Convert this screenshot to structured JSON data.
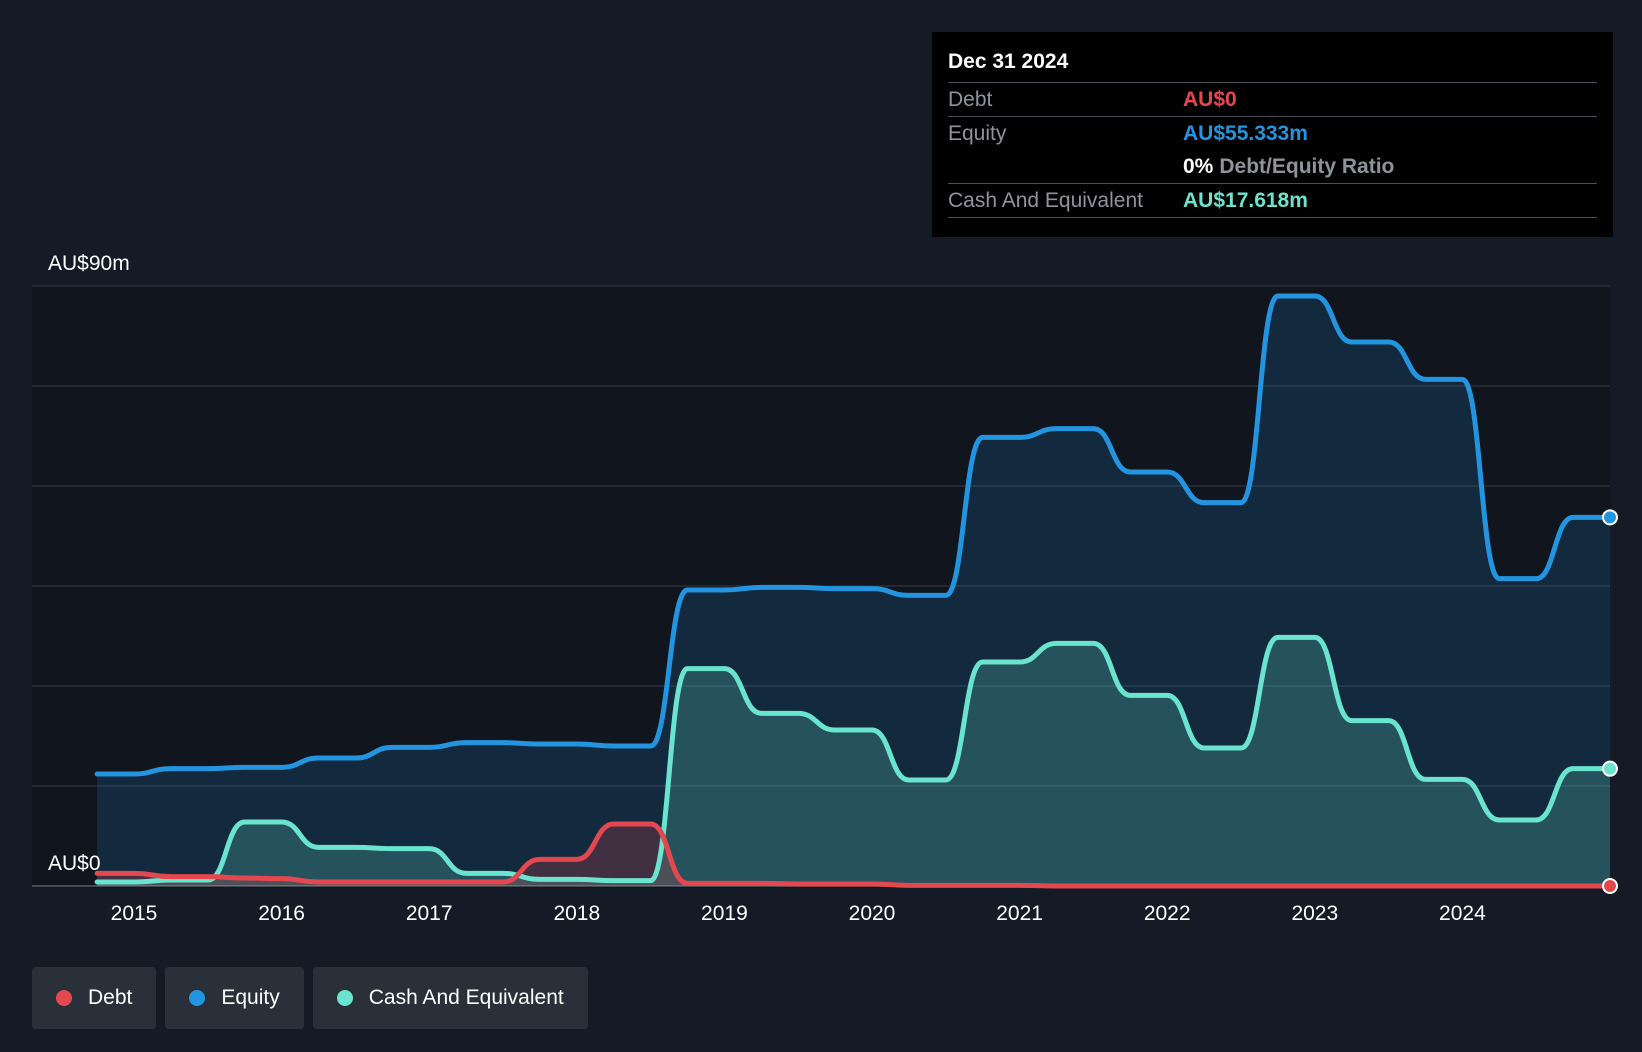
{
  "tooltip": {
    "date": "Dec 31 2024",
    "debt_label": "Debt",
    "debt_value": "AU$0",
    "equity_label": "Equity",
    "equity_value": "AU$55.333m",
    "ratio_value": "0%",
    "ratio_label": "Debt/Equity Ratio",
    "cash_label": "Cash And Equivalent",
    "cash_value": "AU$17.618m"
  },
  "legend": [
    {
      "label": "Debt",
      "color": "#e5474f"
    },
    {
      "label": "Equity",
      "color": "#2394df"
    },
    {
      "label": "Cash And Equivalent",
      "color": "#6ae3cf"
    }
  ],
  "colors": {
    "background": "#151b26",
    "plot_background": "#10151e",
    "debt": "#e5474f",
    "equity": "#2394df",
    "cash": "#6ae3cf"
  },
  "chart_data": {
    "type": "area",
    "y_label_top": "AU$90m",
    "y_label_bottom": "AU$0",
    "ylim": [
      0,
      90
    ],
    "xlim": [
      2014.75,
      2025.0
    ],
    "x_ticks": [
      2015,
      2016,
      2017,
      2018,
      2019,
      2020,
      2021,
      2022,
      2023,
      2024
    ],
    "grid": true,
    "legend_position": "bottom-left",
    "series": [
      {
        "name": "Debt",
        "points": [
          [
            2014.75,
            1.9
          ],
          [
            2015.0,
            1.9
          ],
          [
            2015.25,
            1.4
          ],
          [
            2015.5,
            1.4
          ],
          [
            2015.75,
            1.2
          ],
          [
            2016.0,
            1.1
          ],
          [
            2016.25,
            0.6
          ],
          [
            2016.5,
            0.6
          ],
          [
            2016.75,
            0.6
          ],
          [
            2017.0,
            0.6
          ],
          [
            2017.25,
            0.6
          ],
          [
            2017.5,
            0.6
          ],
          [
            2017.75,
            4.0
          ],
          [
            2018.0,
            4.0
          ],
          [
            2018.25,
            9.3
          ],
          [
            2018.5,
            9.3
          ],
          [
            2018.75,
            0.4
          ],
          [
            2019.0,
            0.4
          ],
          [
            2019.25,
            0.4
          ],
          [
            2019.5,
            0.3
          ],
          [
            2019.75,
            0.3
          ],
          [
            2020.0,
            0.3
          ],
          [
            2020.25,
            0.1
          ],
          [
            2020.5,
            0.1
          ],
          [
            2020.75,
            0.1
          ],
          [
            2021.0,
            0.1
          ],
          [
            2021.25,
            0.0
          ],
          [
            2021.5,
            0.0
          ],
          [
            2021.75,
            0.0
          ],
          [
            2022.0,
            0.0
          ],
          [
            2022.25,
            0.0
          ],
          [
            2022.5,
            0.0
          ],
          [
            2022.75,
            0.0
          ],
          [
            2023.0,
            0.0
          ],
          [
            2023.25,
            0.0
          ],
          [
            2023.5,
            0.0
          ],
          [
            2023.75,
            0.0
          ],
          [
            2024.0,
            0.0
          ],
          [
            2024.25,
            0.0
          ],
          [
            2024.5,
            0.0
          ],
          [
            2024.75,
            0.0
          ],
          [
            2025.0,
            0.0
          ]
        ]
      },
      {
        "name": "Equity",
        "points": [
          [
            2014.75,
            16.8
          ],
          [
            2015.0,
            16.8
          ],
          [
            2015.25,
            17.6
          ],
          [
            2015.5,
            17.6
          ],
          [
            2015.75,
            17.8
          ],
          [
            2016.0,
            17.8
          ],
          [
            2016.25,
            19.2
          ],
          [
            2016.5,
            19.2
          ],
          [
            2016.75,
            20.8
          ],
          [
            2017.0,
            20.8
          ],
          [
            2017.25,
            21.5
          ],
          [
            2017.5,
            21.5
          ],
          [
            2017.75,
            21.3
          ],
          [
            2018.0,
            21.3
          ],
          [
            2018.25,
            21.0
          ],
          [
            2018.5,
            21.0
          ],
          [
            2018.75,
            44.4
          ],
          [
            2019.0,
            44.4
          ],
          [
            2019.25,
            44.8
          ],
          [
            2019.5,
            44.8
          ],
          [
            2019.75,
            44.6
          ],
          [
            2020.0,
            44.6
          ],
          [
            2020.25,
            43.6
          ],
          [
            2020.5,
            43.6
          ],
          [
            2020.75,
            67.3
          ],
          [
            2021.0,
            67.3
          ],
          [
            2021.25,
            68.6
          ],
          [
            2021.5,
            68.6
          ],
          [
            2021.75,
            62.1
          ],
          [
            2022.0,
            62.1
          ],
          [
            2022.25,
            57.5
          ],
          [
            2022.5,
            57.5
          ],
          [
            2022.75,
            88.5
          ],
          [
            2023.0,
            88.5
          ],
          [
            2023.25,
            81.6
          ],
          [
            2023.5,
            81.6
          ],
          [
            2023.75,
            76.0
          ],
          [
            2024.0,
            76.0
          ],
          [
            2024.25,
            46.1
          ],
          [
            2024.5,
            46.1
          ],
          [
            2024.75,
            55.3
          ],
          [
            2025.0,
            55.3
          ]
        ]
      },
      {
        "name": "Cash And Equivalent",
        "points": [
          [
            2014.75,
            0.6
          ],
          [
            2015.0,
            0.6
          ],
          [
            2015.25,
            0.9
          ],
          [
            2015.5,
            0.9
          ],
          [
            2015.75,
            9.6
          ],
          [
            2016.0,
            9.6
          ],
          [
            2016.25,
            5.8
          ],
          [
            2016.5,
            5.8
          ],
          [
            2016.75,
            5.6
          ],
          [
            2017.0,
            5.6
          ],
          [
            2017.25,
            1.9
          ],
          [
            2017.5,
            1.9
          ],
          [
            2017.75,
            1.0
          ],
          [
            2018.0,
            1.0
          ],
          [
            2018.25,
            0.8
          ],
          [
            2018.5,
            0.8
          ],
          [
            2018.75,
            32.6
          ],
          [
            2019.0,
            32.6
          ],
          [
            2019.25,
            25.9
          ],
          [
            2019.5,
            25.9
          ],
          [
            2019.75,
            23.4
          ],
          [
            2020.0,
            23.4
          ],
          [
            2020.25,
            15.9
          ],
          [
            2020.5,
            15.9
          ],
          [
            2020.75,
            33.6
          ],
          [
            2021.0,
            33.6
          ],
          [
            2021.25,
            36.4
          ],
          [
            2021.5,
            36.4
          ],
          [
            2021.75,
            28.6
          ],
          [
            2022.0,
            28.6
          ],
          [
            2022.25,
            20.7
          ],
          [
            2022.5,
            20.7
          ],
          [
            2022.75,
            37.3
          ],
          [
            2023.0,
            37.3
          ],
          [
            2023.25,
            24.8
          ],
          [
            2023.5,
            24.8
          ],
          [
            2023.75,
            16.0
          ],
          [
            2024.0,
            16.0
          ],
          [
            2024.25,
            9.9
          ],
          [
            2024.5,
            9.9
          ],
          [
            2024.75,
            17.6
          ],
          [
            2025.0,
            17.6
          ]
        ]
      }
    ]
  }
}
